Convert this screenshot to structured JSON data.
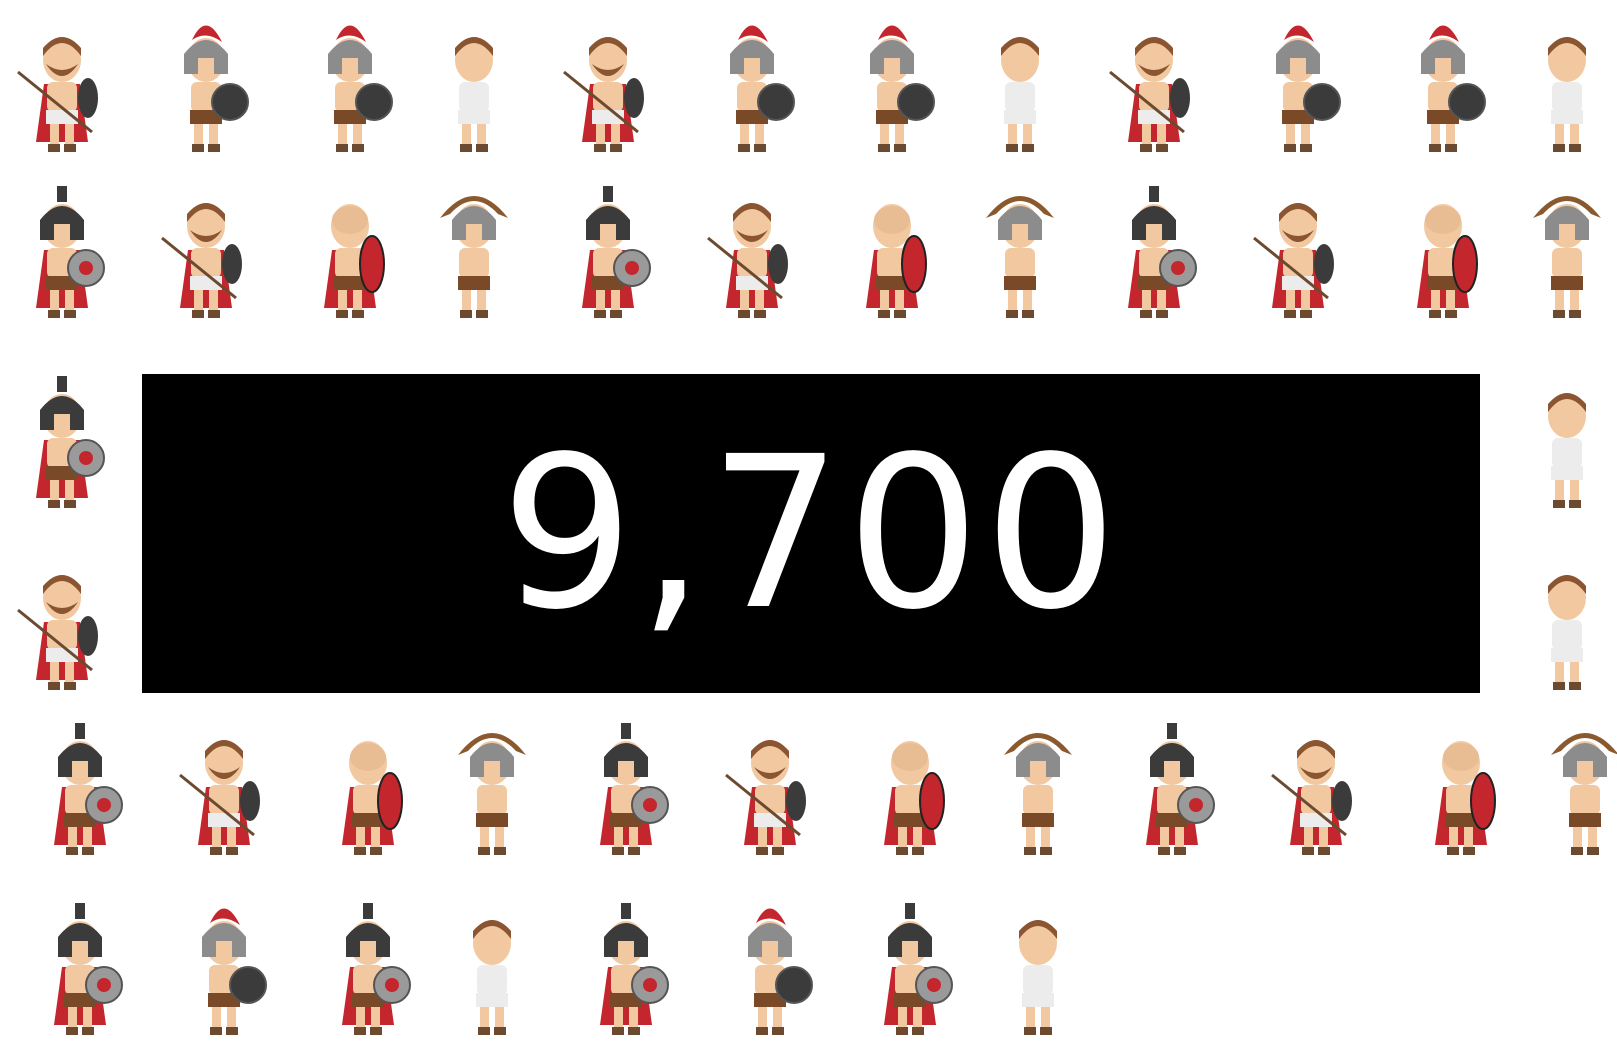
{
  "banner": {
    "text": "9,700"
  }
}
